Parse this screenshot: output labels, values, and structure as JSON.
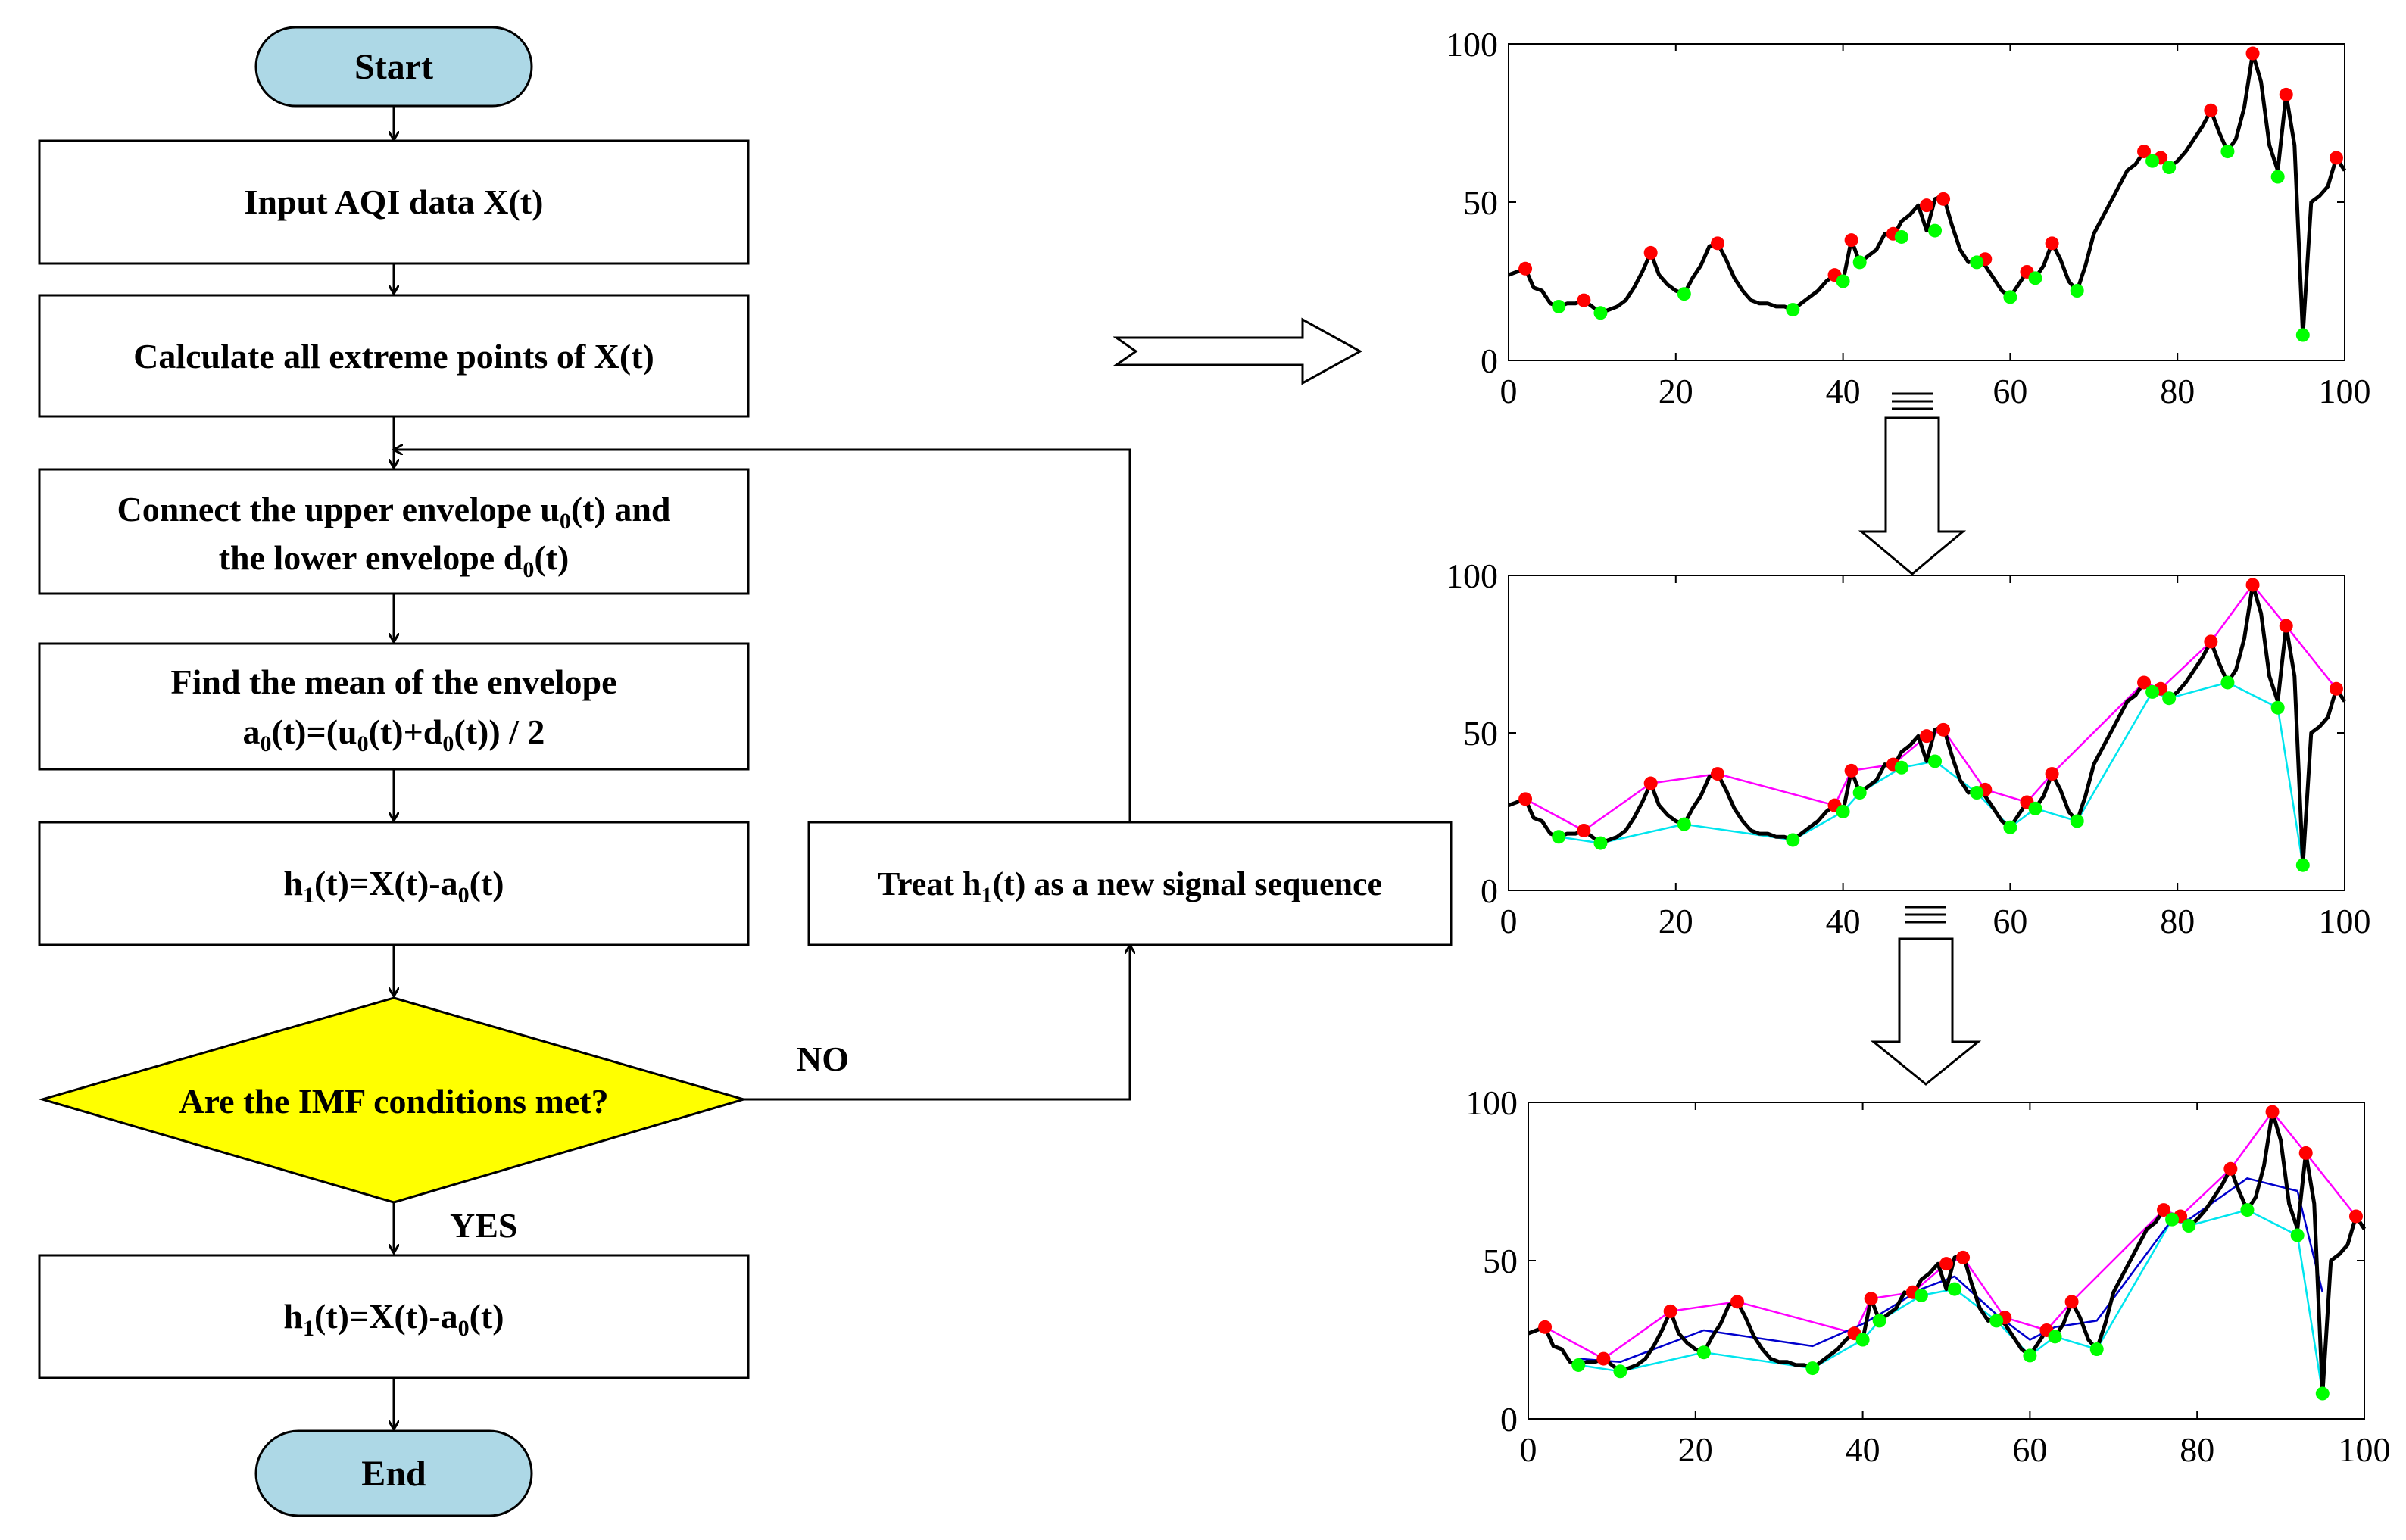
{
  "flowchart": {
    "start": "Start",
    "input": "Input AQI data X(t)",
    "calc": "Calculate all extreme points of X(t)",
    "connect": {
      "l1a": "Connect the upper envelope u",
      "l1sub": "0",
      "l1b": "(t) and",
      "l2a": "the lower envelope d",
      "l2sub": "0",
      "l2b": "(t)"
    },
    "mean": {
      "l1": "Find the mean of the envelope",
      "l2_parts": [
        "a",
        "0",
        "(t)=(u",
        "0",
        "(t)+d",
        "0",
        "(t)) / 2"
      ]
    },
    "h1_parts": [
      "h",
      "1",
      "(t)=X(t)-a",
      "0",
      "(t)"
    ],
    "decision": "Are the IMF conditions met?",
    "no": "NO",
    "yes": "YES",
    "treat_parts": [
      "Treat h",
      "1",
      "(t) as a new signal sequence"
    ],
    "end": "End",
    "colors": {
      "terminal": "#add8e6",
      "decision": "#ffff00"
    }
  },
  "chart_data": [
    {
      "type": "line",
      "xlim": [
        0,
        100
      ],
      "ylim": [
        0,
        100
      ],
      "xticks": [
        "0",
        "20",
        "40",
        "60",
        "80",
        "100"
      ],
      "yticks": [
        "0",
        "50",
        "100"
      ],
      "series": [
        {
          "role": "signal",
          "color": "#000000",
          "x": [
            0,
            2,
            3,
            4,
            5,
            6,
            7,
            8,
            9,
            10,
            11,
            12,
            13,
            14,
            15,
            16,
            17,
            18,
            19,
            20,
            21,
            22,
            23,
            24,
            25,
            26,
            27,
            28,
            29,
            30,
            31,
            32,
            33,
            34,
            35,
            36,
            37,
            38,
            39,
            40,
            41,
            42,
            43,
            44,
            45,
            46,
            47,
            48,
            49,
            50,
            51,
            52,
            53,
            54,
            55,
            56,
            57,
            58,
            59,
            60,
            61,
            62,
            63,
            64,
            65,
            66,
            67,
            68,
            69,
            70,
            71,
            72,
            73,
            74,
            75,
            76,
            77,
            78,
            79,
            80,
            81,
            82,
            83,
            84,
            85,
            86,
            87,
            88,
            89,
            90,
            91,
            92,
            93,
            94,
            95,
            96,
            97,
            98,
            99,
            100
          ],
          "y": [
            27,
            29,
            23,
            22,
            18,
            17,
            18,
            18,
            19,
            17,
            15,
            16,
            17,
            19,
            23,
            28,
            34,
            27,
            24,
            22,
            21,
            26,
            30,
            36,
            37,
            32,
            26,
            22,
            19,
            18,
            18,
            17,
            17,
            16,
            18,
            20,
            22,
            25,
            27,
            25,
            38,
            31,
            33,
            35,
            40,
            39,
            44,
            46,
            49,
            41,
            51,
            52,
            43,
            35,
            31,
            32,
            30,
            26,
            22,
            20,
            24,
            28,
            26,
            30,
            37,
            32,
            25,
            22,
            30,
            40,
            45,
            50,
            55,
            60,
            62,
            66,
            63,
            64,
            61,
            63,
            66,
            70,
            74,
            79,
            72,
            66,
            70,
            80,
            97,
            88,
            68,
            60,
            84,
            68,
            8,
            50,
            52,
            55,
            64,
            60
          ]
        },
        {
          "role": "maxima",
          "color": "#ff0000",
          "x": [
            2,
            9,
            17,
            25,
            39,
            41,
            46,
            50,
            52,
            57,
            62,
            65,
            76,
            78,
            84,
            89,
            93,
            99
          ],
          "y": [
            29,
            19,
            34,
            37,
            27,
            38,
            40,
            49,
            51,
            32,
            28,
            37,
            66,
            64,
            79,
            97,
            84,
            64
          ]
        },
        {
          "role": "minima",
          "color": "#00ff00",
          "x": [
            6,
            11,
            21,
            34,
            40,
            42,
            47,
            51,
            56,
            60,
            63,
            68,
            77,
            79,
            86,
            92,
            95
          ],
          "y": [
            17,
            15,
            21,
            16,
            25,
            31,
            39,
            41,
            31,
            20,
            26,
            22,
            63,
            61,
            66,
            58,
            8
          ]
        }
      ]
    },
    {
      "type": "line",
      "xlim": [
        0,
        100
      ],
      "ylim": [
        0,
        100
      ],
      "xticks": [
        "0",
        "20",
        "40",
        "60",
        "80",
        "100"
      ],
      "yticks": [
        "0",
        "50",
        "100"
      ],
      "series": [
        {
          "role": "signal",
          "color": "#000000",
          "x": [
            0,
            2,
            3,
            4,
            5,
            6,
            7,
            8,
            9,
            10,
            11,
            12,
            13,
            14,
            15,
            16,
            17,
            18,
            19,
            20,
            21,
            22,
            23,
            24,
            25,
            26,
            27,
            28,
            29,
            30,
            31,
            32,
            33,
            34,
            35,
            36,
            37,
            38,
            39,
            40,
            41,
            42,
            43,
            44,
            45,
            46,
            47,
            48,
            49,
            50,
            51,
            52,
            53,
            54,
            55,
            56,
            57,
            58,
            59,
            60,
            61,
            62,
            63,
            64,
            65,
            66,
            67,
            68,
            69,
            70,
            71,
            72,
            73,
            74,
            75,
            76,
            77,
            78,
            79,
            80,
            81,
            82,
            83,
            84,
            85,
            86,
            87,
            88,
            89,
            90,
            91,
            92,
            93,
            94,
            95,
            96,
            97,
            98,
            99,
            100
          ],
          "y": [
            27,
            29,
            23,
            22,
            18,
            17,
            18,
            18,
            19,
            17,
            15,
            16,
            17,
            19,
            23,
            28,
            34,
            27,
            24,
            22,
            21,
            26,
            30,
            36,
            37,
            32,
            26,
            22,
            19,
            18,
            18,
            17,
            17,
            16,
            18,
            20,
            22,
            25,
            27,
            25,
            38,
            31,
            33,
            35,
            40,
            39,
            44,
            46,
            49,
            41,
            51,
            52,
            43,
            35,
            31,
            32,
            30,
            26,
            22,
            20,
            24,
            28,
            26,
            30,
            37,
            32,
            25,
            22,
            30,
            40,
            45,
            50,
            55,
            60,
            62,
            66,
            63,
            64,
            61,
            63,
            66,
            70,
            74,
            79,
            72,
            66,
            70,
            80,
            97,
            88,
            68,
            60,
            84,
            68,
            8,
            50,
            52,
            55,
            64,
            60
          ]
        },
        {
          "role": "upper-envelope",
          "color": "#ff00ff",
          "x": [
            2,
            9,
            17,
            25,
            39,
            41,
            46,
            50,
            52,
            57,
            62,
            65,
            76,
            78,
            84,
            89,
            93,
            99
          ],
          "y": [
            29,
            19,
            34,
            37,
            27,
            38,
            40,
            49,
            51,
            32,
            28,
            37,
            66,
            64,
            79,
            97,
            84,
            64
          ]
        },
        {
          "role": "lower-envelope",
          "color": "#00e5ee",
          "x": [
            6,
            11,
            21,
            34,
            40,
            42,
            47,
            51,
            56,
            60,
            63,
            68,
            77,
            79,
            86,
            92,
            95
          ],
          "y": [
            17,
            15,
            21,
            16,
            25,
            31,
            39,
            41,
            31,
            20,
            26,
            22,
            63,
            61,
            66,
            58,
            8
          ]
        },
        {
          "role": "maxima",
          "color": "#ff0000",
          "x": [
            2,
            9,
            17,
            25,
            39,
            41,
            46,
            50,
            52,
            57,
            62,
            65,
            76,
            78,
            84,
            89,
            93,
            99
          ],
          "y": [
            29,
            19,
            34,
            37,
            27,
            38,
            40,
            49,
            51,
            32,
            28,
            37,
            66,
            64,
            79,
            97,
            84,
            64
          ]
        },
        {
          "role": "minima",
          "color": "#00ff00",
          "x": [
            6,
            11,
            21,
            34,
            40,
            42,
            47,
            51,
            56,
            60,
            63,
            68,
            77,
            79,
            86,
            92,
            95
          ],
          "y": [
            17,
            15,
            21,
            16,
            25,
            31,
            39,
            41,
            31,
            20,
            26,
            22,
            63,
            61,
            66,
            58,
            8
          ]
        }
      ]
    },
    {
      "type": "line",
      "xlim": [
        0,
        100
      ],
      "ylim": [
        0,
        100
      ],
      "xticks": [
        "0",
        "20",
        "40",
        "60",
        "80",
        "100"
      ],
      "yticks": [
        "0",
        "50",
        "100"
      ],
      "series": [
        {
          "role": "signal",
          "color": "#000000",
          "x": [
            0,
            2,
            3,
            4,
            5,
            6,
            7,
            8,
            9,
            10,
            11,
            12,
            13,
            14,
            15,
            16,
            17,
            18,
            19,
            20,
            21,
            22,
            23,
            24,
            25,
            26,
            27,
            28,
            29,
            30,
            31,
            32,
            33,
            34,
            35,
            36,
            37,
            38,
            39,
            40,
            41,
            42,
            43,
            44,
            45,
            46,
            47,
            48,
            49,
            50,
            51,
            52,
            53,
            54,
            55,
            56,
            57,
            58,
            59,
            60,
            61,
            62,
            63,
            64,
            65,
            66,
            67,
            68,
            69,
            70,
            71,
            72,
            73,
            74,
            75,
            76,
            77,
            78,
            79,
            80,
            81,
            82,
            83,
            84,
            85,
            86,
            87,
            88,
            89,
            90,
            91,
            92,
            93,
            94,
            95,
            96,
            97,
            98,
            99,
            100
          ],
          "y": [
            27,
            29,
            23,
            22,
            18,
            17,
            18,
            18,
            19,
            17,
            15,
            16,
            17,
            19,
            23,
            28,
            34,
            27,
            24,
            22,
            21,
            26,
            30,
            36,
            37,
            32,
            26,
            22,
            19,
            18,
            18,
            17,
            17,
            16,
            18,
            20,
            22,
            25,
            27,
            25,
            38,
            31,
            33,
            35,
            40,
            39,
            44,
            46,
            49,
            41,
            51,
            52,
            43,
            35,
            31,
            32,
            30,
            26,
            22,
            20,
            24,
            28,
            26,
            30,
            37,
            32,
            25,
            22,
            30,
            40,
            45,
            50,
            55,
            60,
            62,
            66,
            63,
            64,
            61,
            63,
            66,
            70,
            74,
            79,
            72,
            66,
            70,
            80,
            97,
            88,
            68,
            60,
            84,
            68,
            8,
            50,
            52,
            55,
            64,
            60
          ]
        },
        {
          "role": "upper-envelope",
          "color": "#ff00ff",
          "x": [
            2,
            9,
            17,
            25,
            39,
            41,
            46,
            50,
            52,
            57,
            62,
            65,
            76,
            78,
            84,
            89,
            93,
            99
          ],
          "y": [
            29,
            19,
            34,
            37,
            27,
            38,
            40,
            49,
            51,
            32,
            28,
            37,
            66,
            64,
            79,
            97,
            84,
            64
          ]
        },
        {
          "role": "lower-envelope",
          "color": "#00e5ee",
          "x": [
            6,
            11,
            21,
            34,
            40,
            42,
            47,
            51,
            56,
            60,
            63,
            68,
            77,
            79,
            86,
            92,
            95
          ],
          "y": [
            17,
            15,
            21,
            16,
            25,
            31,
            39,
            41,
            31,
            20,
            26,
            22,
            63,
            61,
            66,
            58,
            8
          ]
        },
        {
          "role": "mean-envelope",
          "color": "#0000cd",
          "x": [
            6,
            11,
            21,
            34,
            40,
            42,
            47,
            51,
            56,
            60,
            63,
            68,
            77,
            79,
            86,
            92,
            95
          ],
          "y": [
            19,
            18,
            28,
            23,
            30,
            33,
            41,
            45,
            33,
            25,
            29,
            31,
            63,
            63,
            76,
            72,
            40
          ]
        },
        {
          "role": "maxima",
          "color": "#ff0000",
          "x": [
            2,
            9,
            17,
            25,
            39,
            41,
            46,
            50,
            52,
            57,
            62,
            65,
            76,
            78,
            84,
            89,
            93,
            99
          ],
          "y": [
            29,
            19,
            34,
            37,
            27,
            38,
            40,
            49,
            51,
            32,
            28,
            37,
            66,
            64,
            79,
            97,
            84,
            64
          ]
        },
        {
          "role": "minima",
          "color": "#00ff00",
          "x": [
            6,
            11,
            21,
            34,
            40,
            42,
            47,
            51,
            56,
            60,
            63,
            68,
            77,
            79,
            86,
            92,
            95
          ],
          "y": [
            17,
            15,
            21,
            16,
            25,
            31,
            39,
            41,
            31,
            20,
            26,
            22,
            63,
            61,
            66,
            58,
            8
          ]
        }
      ]
    }
  ]
}
